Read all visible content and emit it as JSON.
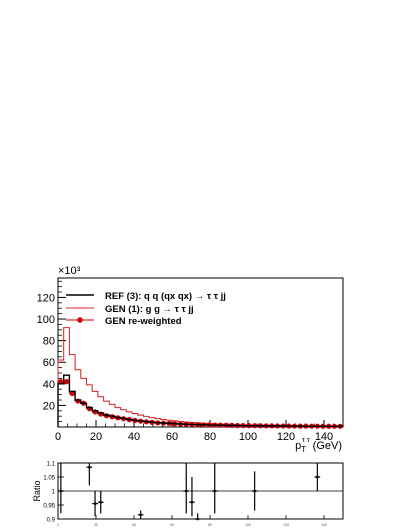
{
  "chart_data": [
    {
      "type": "line",
      "panel": "main",
      "axis_multiplier": "×10³",
      "xlabel_base": "p",
      "xlabel_sub": "T",
      "xlabel_sup": "τ τ",
      "xlabel_unit": "(GeV)",
      "ylabel": "",
      "xlim": [
        0,
        150
      ],
      "ylim": [
        0,
        138
      ],
      "x_ticks": [
        0,
        20,
        40,
        60,
        80,
        100,
        120,
        140
      ],
      "y_ticks": [
        20,
        40,
        60,
        80,
        100,
        120
      ],
      "grid": false,
      "legend_position": "top-left",
      "legend": [
        {
          "label": "REF (3): q q (qx qx) → τ τ jj",
          "style": "line",
          "color": "#000000"
        },
        {
          "label": "GEN (1): g g → τ τ jj",
          "style": "line",
          "color": "#d42020"
        },
        {
          "label": "GEN re-weighted",
          "style": "marker-line",
          "color": "#cc0000"
        }
      ],
      "bin_edges": [
        0,
        3,
        6,
        9,
        12,
        15,
        18,
        21,
        24,
        27,
        30,
        33,
        36,
        39,
        42,
        45,
        48,
        51,
        54,
        57,
        60,
        63,
        66,
        69,
        72,
        75,
        78,
        81,
        84,
        87,
        90,
        93,
        96,
        99,
        102,
        105,
        108,
        111,
        114,
        117,
        120,
        123,
        126,
        129,
        132,
        135,
        138,
        141,
        144,
        147,
        150
      ],
      "series": [
        {
          "name": "REF (3): q q (qx qx) → τ τ jj",
          "color": "#000000",
          "values": [
            40,
            48,
            33,
            25,
            22,
            18,
            15,
            13,
            11,
            10,
            8.8,
            8,
            7,
            6.2,
            5.6,
            5,
            4.5,
            4,
            3.7,
            3.4,
            3.1,
            2.8,
            2.6,
            2.4,
            2.2,
            2,
            1.9,
            1.8,
            1.7,
            1.6,
            1.5,
            1.4,
            1.3,
            1.25,
            1.2,
            1.15,
            1.1,
            1.05,
            1,
            0.95,
            0.9,
            0.85,
            0.8,
            0.78,
            0.75,
            0.72,
            0.7,
            0.68,
            0.65,
            0.62
          ]
        },
        {
          "name": "GEN (1): g g → τ τ jj",
          "color": "#d42020",
          "values": [
            62,
            92,
            67,
            53,
            45,
            39,
            33,
            28,
            24,
            21,
            18,
            16,
            14,
            12.5,
            11,
            9.8,
            8.7,
            7.8,
            7,
            6.3,
            5.7,
            5.1,
            4.6,
            4.2,
            3.8,
            3.5,
            3.2,
            2.9,
            2.7,
            2.5,
            2.3,
            2.1,
            2,
            1.9,
            1.8,
            1.7,
            1.6,
            1.5,
            1.45,
            1.4,
            1.35,
            1.3,
            1.25,
            1.2,
            1.15,
            1.1,
            1.05,
            1,
            0.95,
            0.9
          ]
        },
        {
          "name": "GEN re-weighted",
          "color": "#cc0000",
          "values": [
            42,
            42,
            31,
            24,
            22,
            17,
            14,
            12,
            10.5,
            9.5,
            8.5,
            7.7,
            6.8,
            6,
            5.4,
            4.8,
            4.3,
            3.9,
            3.6,
            3.3,
            3,
            2.7,
            2.5,
            2.3,
            2.1,
            2,
            1.9,
            1.8,
            1.7,
            1.6,
            1.5,
            1.4,
            1.3,
            1.25,
            1.2,
            1.15,
            1.1,
            1.05,
            1,
            0.95,
            0.9,
            0.85,
            0.8,
            0.78,
            0.75,
            0.72,
            0.7,
            0.68,
            0.65,
            0.62
          ]
        }
      ]
    },
    {
      "type": "scatter",
      "panel": "ratio",
      "ylabel": "Ratio",
      "xlim": [
        0,
        150
      ],
      "ylim": [
        0.9,
        1.1
      ],
      "y_ticks": [
        0.9,
        0.95,
        1,
        1.05,
        1.1
      ],
      "y_tick_labels": [
        "0.9",
        "0.95",
        "1",
        "1.05",
        "1.1"
      ],
      "x_ticks": [
        0,
        20,
        40,
        60,
        80,
        100,
        120,
        140
      ],
      "reference_line": 1.0,
      "points": [
        {
          "x": 1.5,
          "y": 1.0,
          "xerr": 1.5,
          "ylo": 0.92,
          "yhi": 1.1
        },
        {
          "x": 16.5,
          "y": 1.085,
          "xerr": 1.5,
          "ylo": 1.02,
          "yhi": 1.1
        },
        {
          "x": 19.5,
          "y": 0.955,
          "xerr": 1.5,
          "ylo": 0.91,
          "yhi": 1.0
        },
        {
          "x": 22.5,
          "y": 0.96,
          "xerr": 1.5,
          "ylo": 0.92,
          "yhi": 1.0
        },
        {
          "x": 43.5,
          "y": 0.915,
          "xerr": 1.5,
          "ylo": 0.9,
          "yhi": 0.93
        },
        {
          "x": 67.5,
          "y": 1.0,
          "xerr": 1.5,
          "ylo": 0.92,
          "yhi": 1.1
        },
        {
          "x": 70.5,
          "y": 0.96,
          "xerr": 1.5,
          "ylo": 0.91,
          "yhi": 1.05
        },
        {
          "x": 73.5,
          "y": 0.9,
          "xerr": 1.5,
          "ylo": 0.9,
          "yhi": 0.92
        },
        {
          "x": 82.5,
          "y": 1.0,
          "xerr": 1.5,
          "ylo": 0.92,
          "yhi": 1.1
        },
        {
          "x": 103.5,
          "y": 1.0,
          "xerr": 1.5,
          "ylo": 0.93,
          "yhi": 1.07
        },
        {
          "x": 136.5,
          "y": 1.05,
          "xerr": 1.5,
          "ylo": 1.0,
          "yhi": 1.1
        }
      ]
    }
  ]
}
